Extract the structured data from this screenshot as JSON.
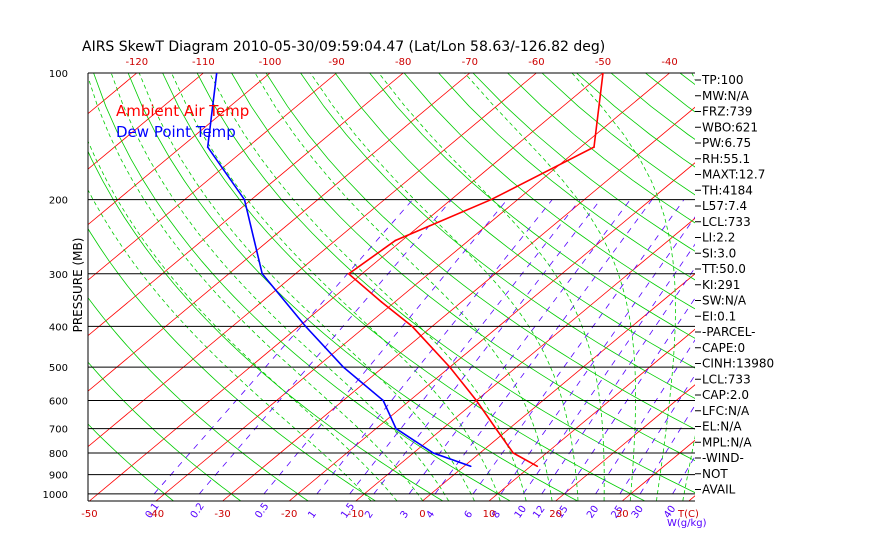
{
  "chart_data": {
    "type": "line",
    "title": "AIRS SkewT Diagram 2010-05-30/09:59:04.47 (Lat/Lon 58.63/-126.82 deg)",
    "ylabel": "PRESSURE (MB)",
    "xlabel": "T(C)",
    "mixing_ratio_unit": "W(g/kg)",
    "y_scale": "log",
    "ylim": [
      1000,
      100
    ],
    "xlim_bottom": [
      -52,
      45
    ],
    "y_ticks": [
      100,
      200,
      300,
      400,
      500,
      600,
      700,
      800,
      900,
      1000
    ],
    "top_ticks": [
      -120,
      -110,
      -100,
      -90,
      -80,
      -70,
      -60,
      -50,
      -40
    ],
    "bottom_ticks": [
      -50,
      -40,
      -30,
      -20,
      -10,
      0,
      10,
      20,
      30
    ],
    "mixing_ratio_labels": [
      "0.1",
      "0.2",
      "0.5",
      "1",
      "1.5",
      "2",
      "3",
      "4",
      "6",
      "8",
      "10",
      "12",
      "15",
      "20",
      "25",
      "30",
      "40"
    ],
    "grid": true,
    "legend": {
      "position": "top-left",
      "entries": [
        "Ambient Air Temp",
        "Dew Point Temp"
      ]
    },
    "colors": {
      "air": "#ff0000",
      "dew": "#0000ff",
      "isotherm": "#ff0000",
      "dry_adiabat": "#00cc00",
      "moist_adiabat": "#00cc00",
      "mixing_ratio": "#5500ff",
      "grid": "#000000"
    },
    "series": [
      {
        "name": "Ambient Air Temp",
        "pressure": [
          860,
          800,
          700,
          600,
          500,
          400,
          350,
          300,
          250,
          200,
          150,
          100
        ],
        "temperature": [
          11,
          5,
          -2,
          -10,
          -20,
          -33,
          -42,
          -52,
          -51,
          -44,
          -38,
          -50
        ]
      },
      {
        "name": "Dew Point Temp",
        "pressure": [
          860,
          800,
          700,
          600,
          500,
          400,
          300,
          200,
          150,
          100
        ],
        "temperature": [
          1,
          -7,
          -17,
          -24,
          -36,
          -49,
          -65,
          -81,
          -96,
          -108
        ]
      }
    ],
    "indices": [
      "TP:100",
      "MW:N/A",
      "FRZ:739",
      "WBO:621",
      "PW:6.75",
      "RH:55.1",
      "MAXT:12.7",
      "TH:4184",
      "L57:7.4",
      "LCL:733",
      "LI:2.2",
      "SI:3.0",
      "TT:50.0",
      "KI:291",
      "SW:N/A",
      "EI:0.1",
      "-PARCEL-",
      "CAPE:0",
      "CINH:13980",
      "LCL:733",
      "CAP:2.0",
      "LFC:N/A",
      "EL:N/A",
      "MPL:N/A",
      "-WIND-",
      "NOT",
      "AVAIL"
    ]
  }
}
